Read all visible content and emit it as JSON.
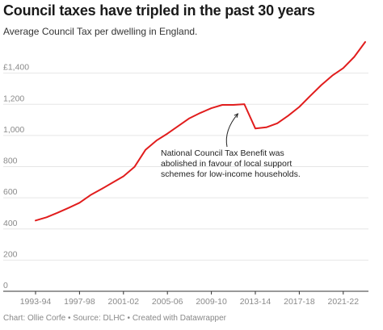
{
  "header": {
    "title": "Council taxes have tripled in the past 30 years",
    "subtitle": "Average Council Tax per dwelling in England."
  },
  "footer": {
    "text": "Chart: Ollie Corfe • Source: DLHC • Created with Datawrapper"
  },
  "colors": {
    "line": "#e11d1d",
    "grid": "#e6e6e6",
    "axis": "#333333",
    "tick_text": "#8a8a8a"
  },
  "chart_data": {
    "type": "line",
    "title": "Council taxes have tripled in the past 30 years",
    "subtitle": "Average Council Tax per dwelling in England.",
    "xlabel": "",
    "ylabel": "",
    "ylim": [
      0,
      1600
    ],
    "grid": true,
    "x_tick_labels": [
      "1993-94",
      "1997-98",
      "2001-02",
      "2005-06",
      "2009-10",
      "2013-14",
      "2017-18",
      "2021-22"
    ],
    "y_tick_labels": [
      "0",
      "200",
      "400",
      "600",
      "800",
      "1,000",
      "1,200",
      "£1,400"
    ],
    "y_ticks": [
      0,
      200,
      400,
      600,
      800,
      1000,
      1200,
      1400
    ],
    "categories": [
      "1993-94",
      "1994-95",
      "1995-96",
      "1996-97",
      "1997-98",
      "1998-99",
      "1999-00",
      "2000-01",
      "2001-02",
      "2002-03",
      "2003-04",
      "2004-05",
      "2005-06",
      "2006-07",
      "2007-08",
      "2008-09",
      "2009-10",
      "2010-11",
      "2011-12",
      "2012-13",
      "2013-14",
      "2014-15",
      "2015-16",
      "2016-17",
      "2017-18",
      "2018-19",
      "2019-20",
      "2020-21",
      "2021-22",
      "2022-23",
      "2023-24"
    ],
    "series": [
      {
        "values": [
          454,
          475,
          504,
          535,
          568,
          617,
          656,
          697,
          738,
          798,
          907,
          967,
          1012,
          1061,
          1110,
          1145,
          1175,
          1196,
          1196,
          1201,
          1045,
          1052,
          1078,
          1127,
          1183,
          1254,
          1323,
          1384,
          1432,
          1504,
          1600
        ]
      }
    ],
    "annotations": [
      {
        "lines": [
          "National Council Tax Benefit was",
          "abolished in favour of local support",
          "schemes for low-income households."
        ],
        "target_category": "2012-13",
        "target_value": 1201
      }
    ]
  }
}
